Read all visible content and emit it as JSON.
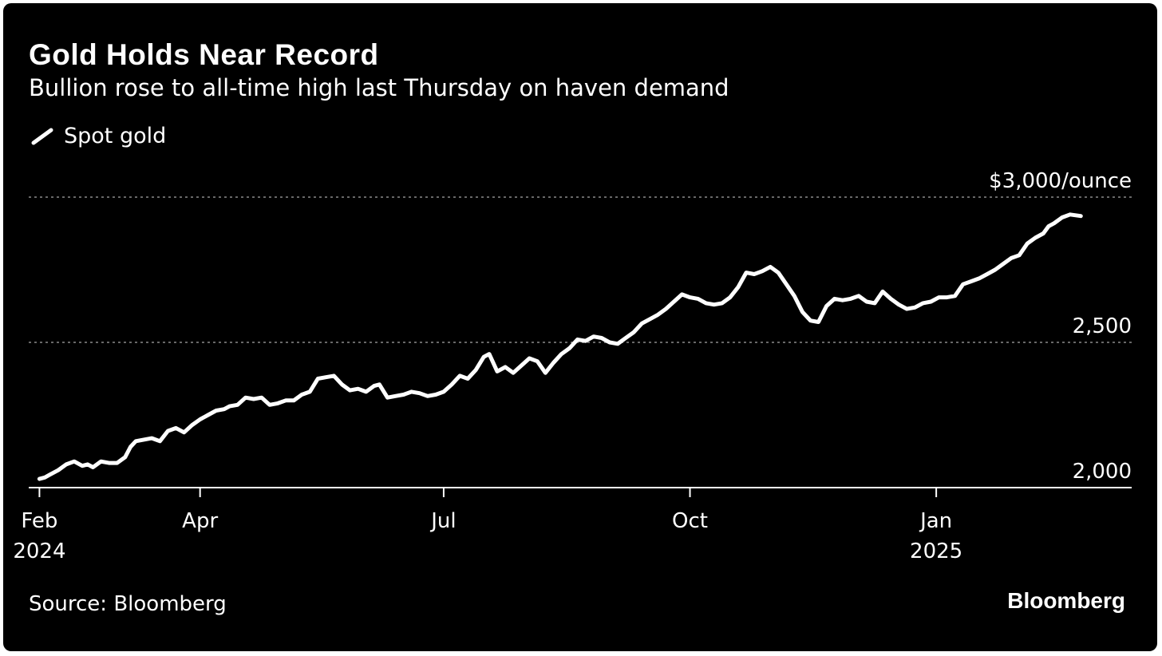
{
  "header": {
    "title": "Gold Holds Near Record",
    "subtitle": "Bullion rose to all-time high last Thursday on haven demand"
  },
  "legend": {
    "label": "Spot gold"
  },
  "footer": {
    "source": "Source: Bloomberg",
    "brand": "Bloomberg"
  },
  "colors": {
    "background": "#000000",
    "line": "#ffffff",
    "grid": "#8a8a8a",
    "axis": "#ffffff"
  },
  "chart_data": {
    "type": "line",
    "title": "Gold Holds Near Record",
    "subtitle": "Bullion rose to all-time high last Thursday on haven demand",
    "xlabel": "",
    "ylabel": "",
    "ylim": [
      2000,
      3000
    ],
    "xlim": [
      "2024-01-28",
      "2025-03-15"
    ],
    "y_ticks": [
      {
        "value": 2000,
        "label": "2,000"
      },
      {
        "value": 2500,
        "label": "2,500"
      },
      {
        "value": 3000,
        "label": "$3,000/ounce"
      }
    ],
    "x_ticks": [
      {
        "date": "2024-02-01",
        "label": "Feb",
        "sublabel": "2024"
      },
      {
        "date": "2024-04-01",
        "label": "Apr",
        "sublabel": ""
      },
      {
        "date": "2024-07-01",
        "label": "Jul",
        "sublabel": ""
      },
      {
        "date": "2024-10-01",
        "label": "Oct",
        "sublabel": ""
      },
      {
        "date": "2025-01-01",
        "label": "Jan",
        "sublabel": "2025"
      }
    ],
    "grid": "horizontal dotted at 2,500 and 3,000",
    "legend_position": "top-left",
    "series": [
      {
        "name": "Spot gold",
        "x": [
          "2024-02-01",
          "2024-02-03",
          "2024-02-05",
          "2024-02-08",
          "2024-02-11",
          "2024-02-14",
          "2024-02-17",
          "2024-02-19",
          "2024-02-21",
          "2024-02-24",
          "2024-02-27",
          "2024-03-01",
          "2024-03-04",
          "2024-03-06",
          "2024-03-08",
          "2024-03-11",
          "2024-03-14",
          "2024-03-17",
          "2024-03-20",
          "2024-03-23",
          "2024-03-26",
          "2024-03-29",
          "2024-04-01",
          "2024-04-04",
          "2024-04-07",
          "2024-04-10",
          "2024-04-12",
          "2024-04-15",
          "2024-04-18",
          "2024-04-21",
          "2024-04-24",
          "2024-04-27",
          "2024-04-30",
          "2024-05-03",
          "2024-05-06",
          "2024-05-09",
          "2024-05-12",
          "2024-05-15",
          "2024-05-18",
          "2024-05-21",
          "2024-05-24",
          "2024-05-27",
          "2024-05-30",
          "2024-06-02",
          "2024-06-05",
          "2024-06-07",
          "2024-06-10",
          "2024-06-13",
          "2024-06-16",
          "2024-06-19",
          "2024-06-22",
          "2024-06-25",
          "2024-06-28",
          "2024-07-01",
          "2024-07-04",
          "2024-07-07",
          "2024-07-10",
          "2024-07-13",
          "2024-07-16",
          "2024-07-18",
          "2024-07-21",
          "2024-07-24",
          "2024-07-27",
          "2024-07-30",
          "2024-08-02",
          "2024-08-05",
          "2024-08-08",
          "2024-08-11",
          "2024-08-14",
          "2024-08-17",
          "2024-08-20",
          "2024-08-23",
          "2024-08-26",
          "2024-08-29",
          "2024-09-01",
          "2024-09-04",
          "2024-09-07",
          "2024-09-10",
          "2024-09-13",
          "2024-09-16",
          "2024-09-19",
          "2024-09-22",
          "2024-09-25",
          "2024-09-28",
          "2024-10-01",
          "2024-10-04",
          "2024-10-07",
          "2024-10-10",
          "2024-10-13",
          "2024-10-16",
          "2024-10-19",
          "2024-10-22",
          "2024-10-25",
          "2024-10-28",
          "2024-10-31",
          "2024-11-03",
          "2024-11-06",
          "2024-11-09",
          "2024-11-12",
          "2024-11-15",
          "2024-11-18",
          "2024-11-21",
          "2024-11-24",
          "2024-11-27",
          "2024-11-30",
          "2024-12-03",
          "2024-12-06",
          "2024-12-09",
          "2024-12-12",
          "2024-12-15",
          "2024-12-18",
          "2024-12-21",
          "2024-12-24",
          "2024-12-27",
          "2024-12-30",
          "2025-01-02",
          "2025-01-05",
          "2025-01-08",
          "2025-01-11",
          "2025-01-14",
          "2025-01-17",
          "2025-01-20",
          "2025-01-23",
          "2025-01-26",
          "2025-01-29",
          "2025-02-01",
          "2025-02-04",
          "2025-02-07",
          "2025-02-10",
          "2025-02-12",
          "2025-02-14",
          "2025-02-17",
          "2025-02-20",
          "2025-02-24"
        ],
        "y": [
          2030,
          2035,
          2045,
          2060,
          2080,
          2090,
          2075,
          2080,
          2070,
          2090,
          2085,
          2085,
          2105,
          2140,
          2160,
          2165,
          2170,
          2160,
          2195,
          2205,
          2190,
          2215,
          2235,
          2250,
          2265,
          2270,
          2280,
          2285,
          2310,
          2305,
          2310,
          2285,
          2290,
          2300,
          2300,
          2320,
          2330,
          2375,
          2380,
          2385,
          2355,
          2335,
          2340,
          2330,
          2350,
          2355,
          2310,
          2315,
          2320,
          2330,
          2325,
          2315,
          2320,
          2330,
          2355,
          2385,
          2375,
          2405,
          2450,
          2460,
          2400,
          2415,
          2395,
          2420,
          2445,
          2435,
          2395,
          2430,
          2460,
          2480,
          2510,
          2505,
          2520,
          2515,
          2500,
          2495,
          2515,
          2535,
          2565,
          2580,
          2595,
          2615,
          2640,
          2665,
          2655,
          2650,
          2635,
          2630,
          2635,
          2655,
          2690,
          2740,
          2735,
          2745,
          2760,
          2740,
          2700,
          2660,
          2605,
          2575,
          2570,
          2625,
          2650,
          2645,
          2650,
          2660,
          2640,
          2635,
          2675,
          2650,
          2630,
          2615,
          2620,
          2635,
          2640,
          2655,
          2655,
          2660,
          2700,
          2710,
          2720,
          2735,
          2750,
          2770,
          2790,
          2800,
          2840,
          2860,
          2875,
          2900,
          2910,
          2930,
          2940,
          2935
        ]
      }
    ]
  }
}
